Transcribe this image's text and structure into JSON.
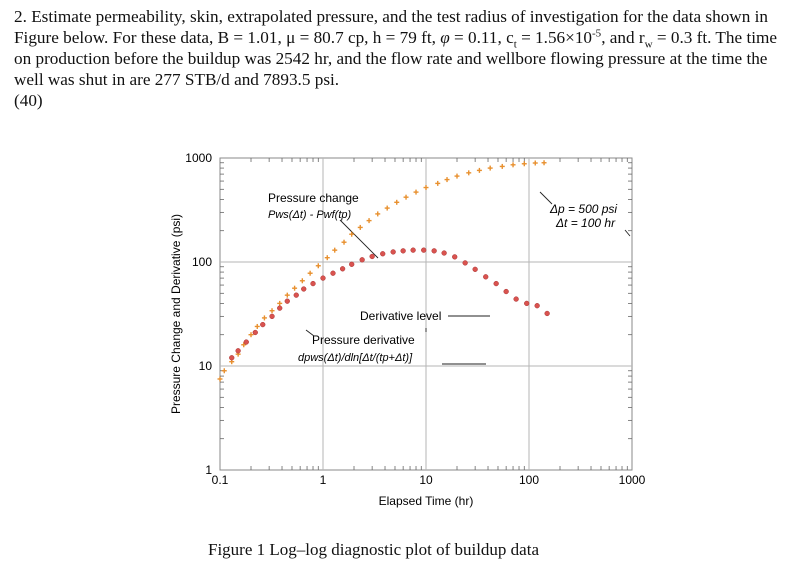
{
  "problem": {
    "number": "2.",
    "text_1": " Estimate permeability, skin, extrapolated pressure, and the test radius of investigation for the data shown in Figure below. For these data, B = 1.01, μ = 80.7 cp, h = 79 ft, ",
    "phi_symbol": "φ",
    "text_2": " = 0.11, c",
    "ct_sub": "t",
    "text_3": " = 1.56×10",
    "exp": "-5",
    "text_4": ", and r",
    "rw_sub": "w",
    "text_5": " = 0.3 ft. The time on production before the buildup was 2542 hr, and the flow rate and wellbore flowing pressure at the time the well was shut in are 277 STB/d and 7893.5 psi.",
    "points": "(40)"
  },
  "caption": "Figure 1 Log–log diagnostic plot of buildup data",
  "chart_data": {
    "type": "scatter",
    "x_scale": "log",
    "y_scale": "log",
    "xlim": [
      0.1,
      1000
    ],
    "ylim": [
      1,
      1000
    ],
    "x_ticks": [
      "0.1",
      "1",
      "10",
      "100",
      "1000"
    ],
    "y_ticks": [
      "1",
      "10",
      "100",
      "1000"
    ],
    "xlabel": "Elapsed Time (hr)",
    "ylabel": "Pressure Change and Derivative (psi)",
    "grid": true,
    "annotations": {
      "pressure_change_title": "Pressure change",
      "pressure_change_formula": "Pws(Δt) - Pwf(tp)",
      "derivative_level": "Derivative level",
      "pressure_derivative_title": "Pressure derivative",
      "pressure_derivative_formula": "dpws(Δt)/dln[Δt/(tp+Δt)]",
      "dp_scale": "Δp = 500 psi",
      "dt_scale": "Δt = 100 hr"
    },
    "series": [
      {
        "color": "#e8902e",
        "marker": "plus",
        "x": [
          0.1,
          0.11,
          0.13,
          0.15,
          0.17,
          0.2,
          0.23,
          0.27,
          0.32,
          0.38,
          0.45,
          0.53,
          0.63,
          0.75,
          0.9,
          1.1,
          1.3,
          1.6,
          1.9,
          2.3,
          2.8,
          3.4,
          4.2,
          5.2,
          6.4,
          8,
          10,
          13,
          16,
          20,
          26,
          33,
          42,
          55,
          70,
          90,
          115,
          140
        ],
        "y": [
          7.5,
          9,
          11,
          13,
          16,
          20,
          24,
          29,
          34,
          40,
          48,
          56,
          66,
          78,
          92,
          110,
          130,
          155,
          185,
          215,
          250,
          290,
          330,
          375,
          420,
          470,
          520,
          570,
          620,
          670,
          720,
          760,
          800,
          830,
          860,
          880,
          895,
          900
        ]
      },
      {
        "color": "#d9534f",
        "marker": "circle",
        "x": [
          0.13,
          0.15,
          0.18,
          0.22,
          0.26,
          0.32,
          0.38,
          0.45,
          0.55,
          0.65,
          0.8,
          1.0,
          1.25,
          1.55,
          1.9,
          2.4,
          3.0,
          3.8,
          4.8,
          6,
          7.5,
          9.5,
          12,
          15,
          19,
          24,
          30,
          38,
          48,
          60,
          75,
          95,
          120,
          150
        ],
        "y": [
          12,
          14,
          17,
          21,
          25,
          30,
          36,
          42,
          48,
          55,
          62,
          70,
          78,
          86,
          95,
          105,
          113,
          120,
          125,
          128,
          130,
          130,
          128,
          122,
          112,
          98,
          85,
          72,
          62,
          52,
          44,
          40,
          38,
          32
        ]
      }
    ]
  }
}
